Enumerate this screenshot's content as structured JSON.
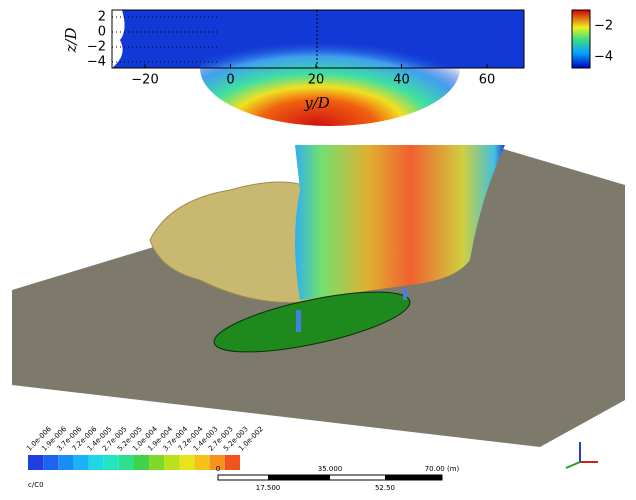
{
  "top_plot": {
    "x_label": "y/D",
    "y_label": "z/D",
    "x_ticks": [
      "−20",
      "0",
      "20",
      "40",
      "60"
    ],
    "y_ticks": [
      "2",
      "0",
      "−2",
      "−4"
    ],
    "colorbar_ticks": [
      "−2",
      "−4"
    ]
  },
  "legend": {
    "title": "c/C0",
    "labels": [
      "1.0e-006",
      "1.9e-006",
      "3.7e-006",
      "7.2e-006",
      "1.4e-005",
      "2.7e-005",
      "5.2e-005",
      "1.0e-004",
      "1.9e-004",
      "3.7e-004",
      "7.2e-004",
      "1.4e-003",
      "2.7e-003",
      "5.2e-003",
      "1.0e-002"
    ],
    "colors": [
      "#1f3fe0",
      "#1e63ee",
      "#1a8cf5",
      "#1ab4f5",
      "#1fd8e6",
      "#22e6bf",
      "#2fe08a",
      "#3fd24a",
      "#7fd82a",
      "#b8e21e",
      "#e6e41a",
      "#f5c21a",
      "#f5931e",
      "#f2521c"
    ]
  },
  "scale_bar": {
    "top_labels": [
      "0",
      "35.000",
      "70.00 (m)"
    ],
    "bottom_labels": [
      "17.500",
      "52.50"
    ]
  }
}
